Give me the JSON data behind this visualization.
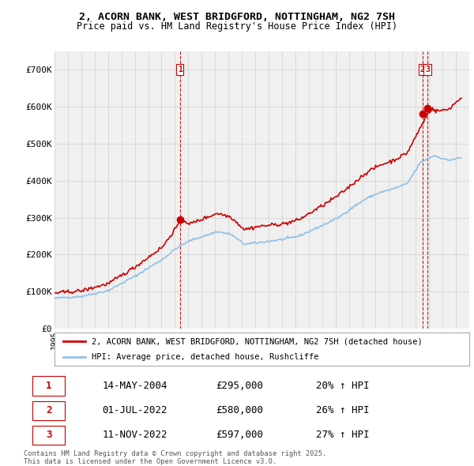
{
  "title": "2, ACORN BANK, WEST BRIDGFORD, NOTTINGHAM, NG2 7SH",
  "subtitle": "Price paid vs. HM Land Registry's House Price Index (HPI)",
  "line1_label": "2, ACORN BANK, WEST BRIDGFORD, NOTTINGHAM, NG2 7SH (detached house)",
  "line2_label": "HPI: Average price, detached house, Rushcliffe",
  "line1_color": "#cc0000",
  "line2_color": "#90c0e8",
  "marker_color": "#cc0000",
  "vline_color": "#cc0000",
  "purchases": [
    {
      "num": 1,
      "date_str": "14-MAY-2004",
      "price": 295000,
      "hpi_pct": "20% ↑ HPI"
    },
    {
      "num": 2,
      "date_str": "01-JUL-2022",
      "price": 580000,
      "hpi_pct": "26% ↑ HPI"
    },
    {
      "num": 3,
      "date_str": "11-NOV-2022",
      "price": 597000,
      "hpi_pct": "27% ↑ HPI"
    }
  ],
  "ylim": [
    0,
    750000
  ],
  "yticks": [
    0,
    100000,
    200000,
    300000,
    400000,
    500000,
    600000,
    700000
  ],
  "ytick_labels": [
    "£0",
    "£100K",
    "£200K",
    "£300K",
    "£400K",
    "£500K",
    "£600K",
    "£700K"
  ],
  "start_year": 1995,
  "end_year": 2025,
  "footer": "Contains HM Land Registry data © Crown copyright and database right 2025.\nThis data is licensed under the Open Government Licence v3.0.",
  "bg_color": "#f0f0f0",
  "grid_color": "#cccccc"
}
